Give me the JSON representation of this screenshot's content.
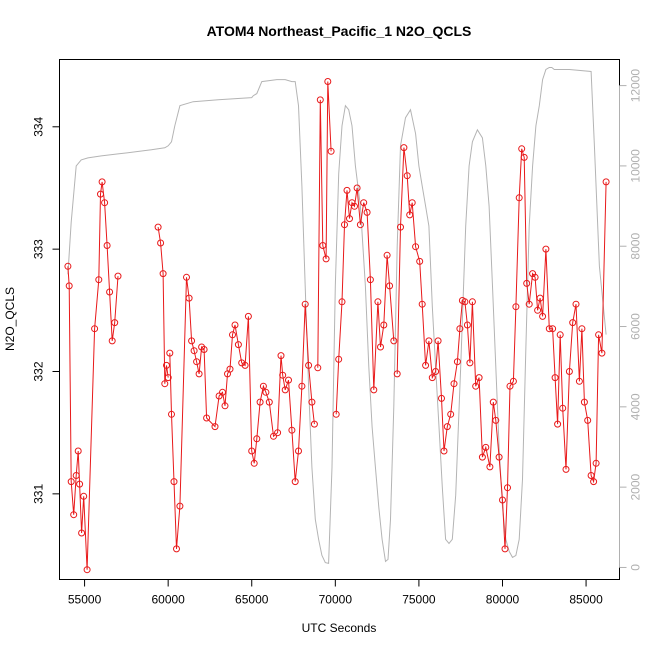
{
  "chart_data": {
    "type": "line",
    "title": "ATOM4 Northeast_Pacific_1 N2O_QCLS",
    "xlabel": "UTC Seconds",
    "ylabel": "N2O_QCLS",
    "xlim": [
      53500,
      87000
    ],
    "ylim": [
      330.3,
      334.55
    ],
    "y2lim": [
      -300,
      12650
    ],
    "x_ticks": [
      55000,
      60000,
      65000,
      70000,
      75000,
      80000,
      85000
    ],
    "y_ticks": [
      331,
      332,
      333,
      334
    ],
    "y2_ticks": [
      0,
      2000,
      4000,
      6000,
      8000,
      10000,
      12000
    ],
    "grid": false,
    "series": [
      {
        "style": "line+points",
        "color": "#e8191a",
        "x": [
          54000,
          54080,
          54200,
          54350,
          54500,
          54620,
          54700,
          54820,
          54950,
          55150,
          55600,
          55850,
          55950,
          56050,
          56200,
          56350,
          56500,
          56650,
          56800,
          57000,
          59400,
          59550,
          59700,
          59800,
          59900,
          60000,
          60100,
          60200,
          60350,
          60500,
          60700,
          61100,
          61250,
          61400,
          61550,
          61700,
          61850,
          62000,
          62150,
          62300,
          62800,
          63050,
          63250,
          63400,
          63550,
          63700,
          63850,
          64000,
          64200,
          64400,
          64600,
          64800,
          65000,
          65150,
          65300,
          65500,
          65700,
          65850,
          66050,
          66300,
          66550,
          66750,
          66850,
          67000,
          67200,
          67400,
          67600,
          67800,
          68000,
          68200,
          68400,
          68600,
          68750,
          68950,
          69100,
          69250,
          69450,
          69550,
          69750,
          70050,
          70200,
          70400,
          70550,
          70700,
          70850,
          71000,
          71150,
          71300,
          71500,
          71700,
          71900,
          72100,
          72300,
          72550,
          72700,
          72900,
          73100,
          73250,
          73500,
          73700,
          73900,
          74100,
          74300,
          74450,
          74600,
          74800,
          75050,
          75200,
          75400,
          75600,
          75800,
          76000,
          76150,
          76350,
          76500,
          76700,
          76900,
          77100,
          77300,
          77450,
          77600,
          77750,
          77900,
          78050,
          78200,
          78400,
          78600,
          78800,
          79000,
          79250,
          79450,
          79600,
          79800,
          80000,
          80150,
          80300,
          80450,
          80650,
          80800,
          81000,
          81150,
          81300,
          81450,
          81600,
          81800,
          81950,
          82100,
          82250,
          82400,
          82600,
          82800,
          83000,
          83150,
          83300,
          83450,
          83600,
          83800,
          84000,
          84200,
          84400,
          84600,
          84750,
          84900,
          85100,
          85300,
          85450,
          85600,
          85750,
          85950,
          86200
        ],
        "y": [
          332.86,
          332.7,
          331.1,
          330.83,
          331.15,
          331.35,
          331.08,
          330.68,
          330.98,
          330.38,
          332.35,
          332.75,
          333.45,
          333.55,
          333.38,
          333.03,
          332.65,
          332.25,
          332.4,
          332.78,
          333.18,
          333.05,
          332.8,
          331.9,
          332.05,
          331.95,
          332.15,
          331.65,
          331.1,
          330.55,
          330.9,
          332.77,
          332.6,
          332.25,
          332.17,
          332.08,
          331.98,
          332.2,
          332.18,
          331.62,
          331.55,
          331.8,
          331.83,
          331.72,
          331.98,
          332.02,
          332.3,
          332.38,
          332.22,
          332.07,
          332.05,
          332.45,
          331.35,
          331.25,
          331.45,
          331.75,
          331.88,
          331.83,
          331.75,
          331.47,
          331.5,
          332.13,
          331.97,
          331.85,
          331.93,
          331.52,
          331.1,
          331.35,
          331.88,
          332.55,
          332.05,
          331.75,
          331.57,
          332.03,
          334.22,
          333.03,
          332.92,
          334.37,
          333.8,
          331.65,
          332.1,
          332.57,
          333.2,
          333.48,
          333.25,
          333.38,
          333.35,
          333.5,
          333.2,
          333.38,
          333.3,
          332.75,
          331.85,
          332.57,
          332.2,
          332.38,
          332.95,
          332.7,
          332.25,
          331.98,
          333.18,
          333.83,
          333.6,
          333.28,
          333.38,
          333.02,
          332.9,
          332.55,
          332.05,
          332.25,
          331.95,
          332.0,
          332.25,
          331.78,
          331.35,
          331.55,
          331.65,
          331.9,
          332.08,
          332.35,
          332.58,
          332.57,
          332.38,
          332.07,
          332.57,
          331.88,
          331.95,
          331.3,
          331.38,
          331.22,
          331.75,
          331.6,
          331.3,
          330.95,
          330.55,
          331.05,
          331.88,
          331.92,
          332.53,
          333.42,
          333.82,
          333.75,
          332.72,
          332.55,
          332.8,
          332.77,
          332.5,
          332.6,
          332.45,
          333.0,
          332.35,
          332.35,
          331.95,
          331.57,
          332.3,
          331.7,
          331.2,
          332.0,
          332.4,
          332.55,
          331.92,
          332.35,
          331.75,
          331.6,
          331.15,
          331.1,
          331.25,
          332.3,
          332.15,
          333.55
        ],
        "breaks_after_x": [
          57000,
          60000,
          68750,
          69750,
          73500
        ]
      },
      {
        "style": "line",
        "color": "#b4b4b4",
        "axis": "right",
        "x": [
          54000,
          54200,
          54500,
          54800,
          55200,
          56000,
          57000,
          58000,
          59000,
          59800,
          60000,
          60200,
          60400,
          60700,
          61500,
          63000,
          65000,
          65100,
          65300,
          65600,
          66500,
          67000,
          67400,
          67600,
          67800,
          68000,
          68200,
          68400,
          68600,
          68800,
          69000,
          69200,
          69400,
          69600,
          69800,
          70000,
          70200,
          70400,
          70600,
          70800,
          71000,
          71200,
          71500,
          71800,
          72000,
          72200,
          72400,
          72600,
          72800,
          73000,
          73150,
          73300,
          73500,
          73700,
          73900,
          74200,
          74500,
          74800,
          75000,
          75200,
          75400,
          75600,
          75800,
          76000,
          76200,
          76400,
          76600,
          76800,
          77000,
          77200,
          77500,
          77800,
          78000,
          78200,
          78500,
          78800,
          79000,
          79200,
          79400,
          79600,
          79800,
          80000,
          80200,
          80400,
          80600,
          80800,
          81000,
          81200,
          81400,
          81600,
          81800,
          82000,
          82200,
          82400,
          82600,
          82800,
          82950,
          83100,
          84000,
          85300,
          85500,
          85800,
          86200
        ],
        "y": [
          7300,
          8600,
          10000,
          10150,
          10200,
          10250,
          10300,
          10350,
          10400,
          10450,
          10500,
          10600,
          11000,
          11500,
          11600,
          11650,
          11700,
          11750,
          11800,
          12100,
          12150,
          12150,
          12100,
          12100,
          11500,
          9500,
          7000,
          4500,
          2500,
          1200,
          700,
          300,
          120,
          100,
          2500,
          7000,
          9800,
          11000,
          11500,
          11400,
          11000,
          10000,
          9000,
          7000,
          5000,
          3500,
          2500,
          1500,
          700,
          150,
          200,
          1200,
          4000,
          8000,
          10500,
          11200,
          11400,
          10800,
          10000,
          9500,
          9000,
          8500,
          6500,
          5000,
          3500,
          2000,
          700,
          600,
          700,
          1800,
          5000,
          8500,
          10000,
          10600,
          10900,
          10700,
          10000,
          9000,
          7000,
          5000,
          3000,
          1500,
          700,
          400,
          250,
          300,
          700,
          2200,
          5500,
          8500,
          10000,
          11000,
          11500,
          12150,
          12400,
          12450,
          12450,
          12400,
          12400,
          12350,
          10500,
          7500,
          5800
        ]
      }
    ]
  }
}
